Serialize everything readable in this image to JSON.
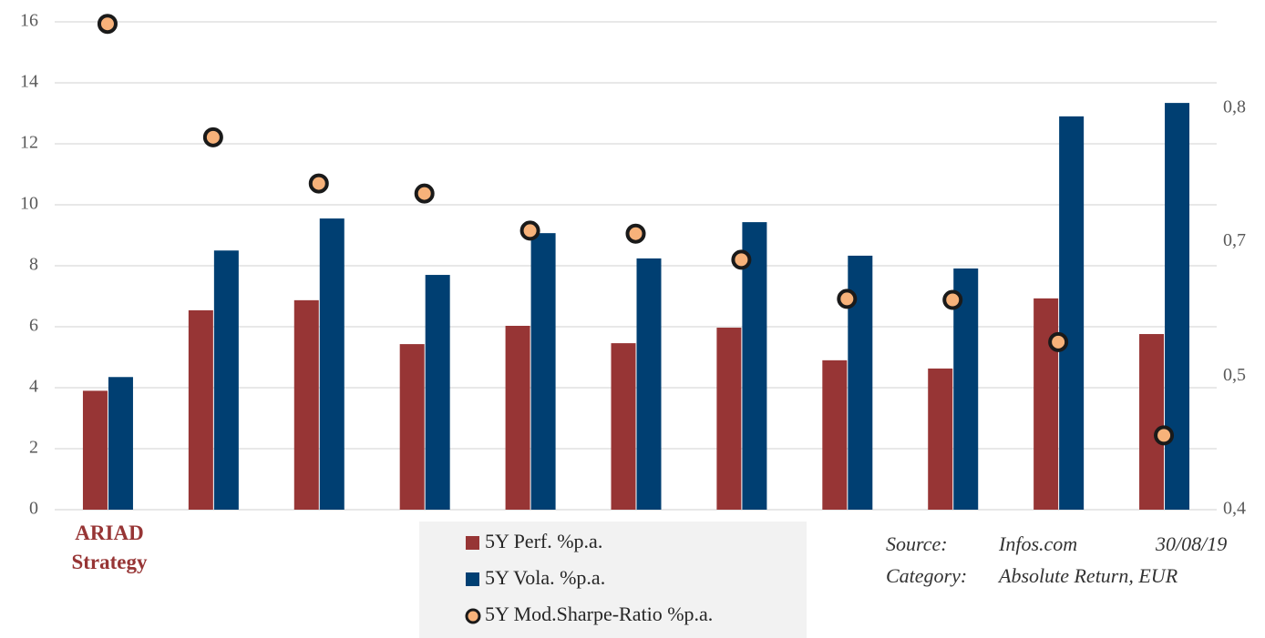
{
  "chart_data": {
    "type": "bar",
    "categories": [
      "ARIAD Strategy",
      null,
      null,
      null,
      null,
      null,
      null,
      null,
      null,
      null,
      null
    ],
    "series": [
      {
        "name": "5Y Perf. %p.a.",
        "color": "#973535",
        "values": [
          3.9,
          6.54,
          6.87,
          5.43,
          6.03,
          5.46,
          5.97,
          4.9,
          4.63,
          6.93,
          5.76
        ]
      },
      {
        "name": "5Y Vola. %p.a.",
        "color": "#003f72",
        "values": [
          4.35,
          8.5,
          9.55,
          7.7,
          9.07,
          8.24,
          9.43,
          8.33,
          7.91,
          12.9,
          13.34
        ]
      },
      {
        "name": "5Y Mod.Sharpe-Ratio %p.a.",
        "color": "#f7b27a",
        "axis": "y2",
        "values": [
          0.884,
          0.771,
          0.725,
          0.715,
          0.678,
          0.675,
          0.649,
          0.61,
          0.609,
          0.567,
          0.474
        ]
      }
    ],
    "ylim": [
      0,
      16
    ],
    "yticks": [
      0,
      2,
      4,
      6,
      8,
      10,
      12,
      14,
      16
    ],
    "y2lim": [
      0.4,
      0.886
    ],
    "y2ticks": [
      {
        "value": 0.4,
        "label": "0,4"
      },
      {
        "value": 0.533,
        "label": "0,5"
      },
      {
        "value": 0.667,
        "label": "0,7"
      },
      {
        "value": 0.8,
        "label": "0,8"
      }
    ],
    "grid": true,
    "source": {
      "label": "Source:",
      "name": "Infos.com",
      "date": "30/08/19"
    },
    "category": {
      "label": "Category:",
      "value": "Absolute Return, EUR"
    }
  }
}
